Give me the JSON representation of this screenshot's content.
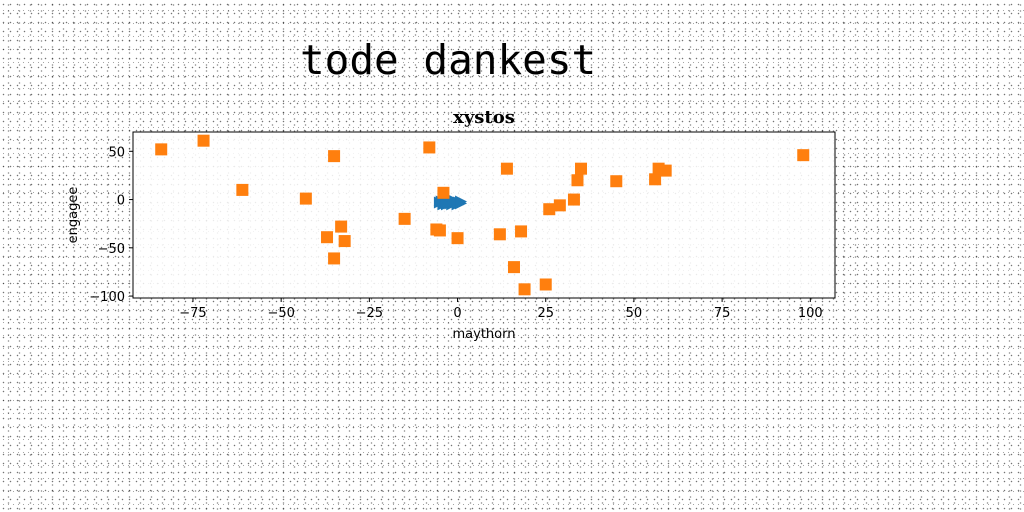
{
  "figure": {
    "title": "tode dankest"
  },
  "chart_data": {
    "type": "scatter",
    "title": "xystos",
    "xlabel": "maythorn",
    "ylabel": "engagee",
    "xlim": [
      -92,
      107
    ],
    "ylim": [
      -102,
      70
    ],
    "xticks": [
      -75,
      -50,
      -25,
      0,
      25,
      50,
      75,
      100
    ],
    "xtick_labels": [
      "−75",
      "−50",
      "−25",
      "0",
      "25",
      "50",
      "75",
      "100"
    ],
    "yticks": [
      50,
      0,
      -50,
      -100
    ],
    "ytick_labels": [
      "50",
      "0",
      "−50",
      "−100"
    ],
    "grid": false,
    "legend": "none",
    "series": [
      {
        "color": "#1f77b4",
        "marker": "triangle-right",
        "points": [
          [
            -5,
            -3
          ],
          [
            -4,
            -5
          ],
          [
            -3,
            -2
          ],
          [
            -2,
            -4
          ],
          [
            -1,
            -3
          ],
          [
            0,
            -3
          ],
          [
            1,
            -4
          ],
          [
            -4.5,
            -2
          ],
          [
            -3.5,
            -4
          ],
          [
            -2.5,
            -1
          ],
          [
            -1.5,
            -5
          ],
          [
            -0.5,
            -2
          ],
          [
            0.5,
            -3
          ],
          [
            -4,
            -1
          ],
          [
            -2,
            -2
          ],
          [
            -3,
            -5
          ],
          [
            -1,
            -1
          ],
          [
            0,
            -5
          ],
          [
            1,
            -2
          ]
        ]
      },
      {
        "color": "#ff7f0e",
        "marker": "square",
        "points": [
          [
            -84,
            52
          ],
          [
            -72,
            61
          ],
          [
            -61,
            10
          ],
          [
            -43,
            1
          ],
          [
            -35,
            45
          ],
          [
            -37,
            -39
          ],
          [
            -35,
            -61
          ],
          [
            -33,
            -28
          ],
          [
            -32,
            -43
          ],
          [
            -15,
            -20
          ],
          [
            -8,
            54
          ],
          [
            -6,
            -31
          ],
          [
            -4,
            7
          ],
          [
            -5,
            -32
          ],
          [
            0,
            -40
          ],
          [
            12,
            -36
          ],
          [
            14,
            32
          ],
          [
            16,
            -70
          ],
          [
            18,
            -33
          ],
          [
            19,
            -93
          ],
          [
            25,
            -88
          ],
          [
            26,
            -10
          ],
          [
            29,
            -6
          ],
          [
            33,
            0
          ],
          [
            34,
            20
          ],
          [
            35,
            32
          ],
          [
            45,
            19
          ],
          [
            56,
            21
          ],
          [
            57,
            32
          ],
          [
            59,
            30
          ],
          [
            98,
            46
          ]
        ]
      }
    ]
  }
}
